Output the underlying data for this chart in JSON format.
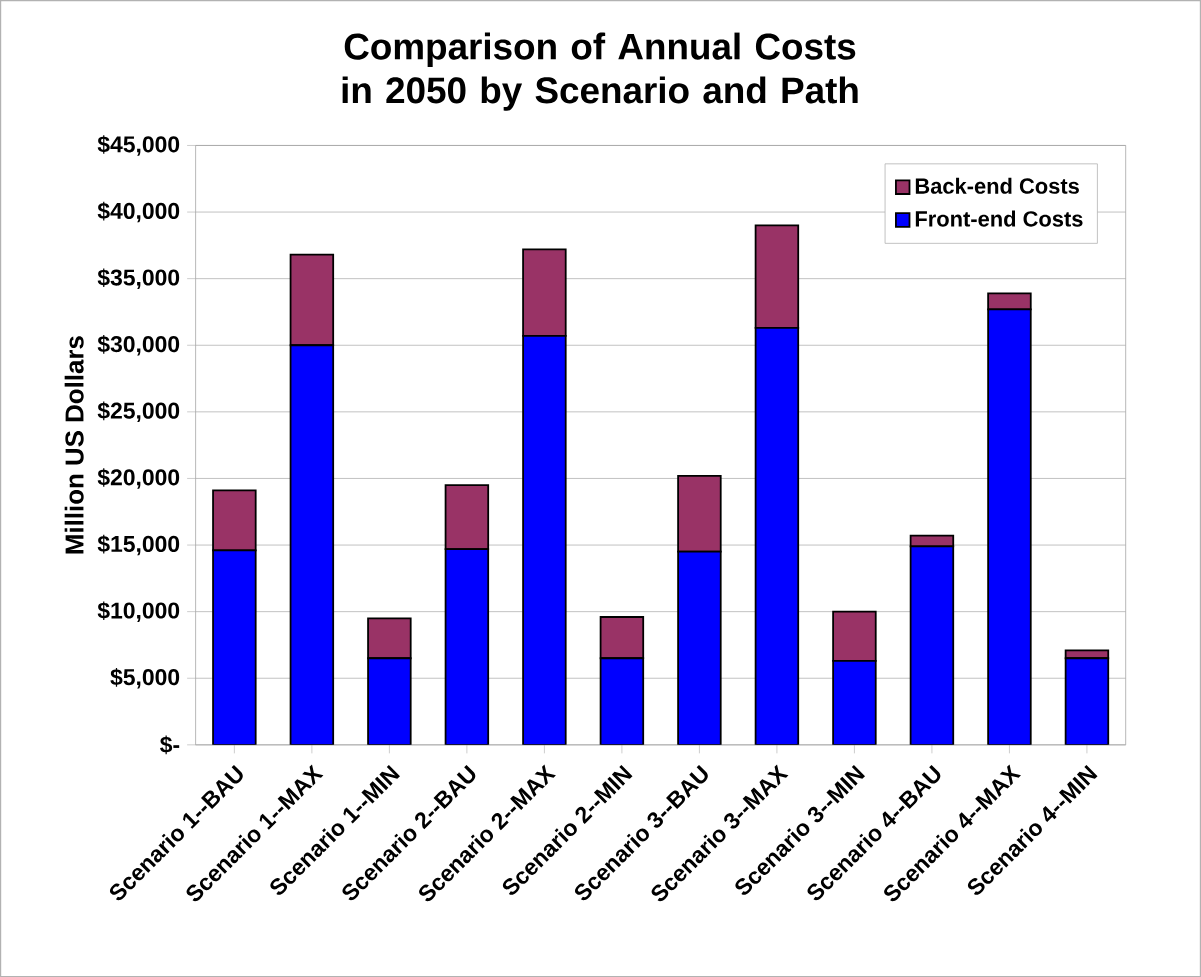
{
  "chart_data": {
    "type": "bar",
    "stacked": true,
    "title": "Comparison of Annual Costs in 2050 by Scenario and Path",
    "ylabel": "Million US Dollars",
    "categories": [
      "Scenario 1--BAU",
      "Scenario 1--MAX",
      "Scenario 1--MIN",
      "Scenario 2--BAU",
      "Scenario 2--MAX",
      "Scenario 2--MIN",
      "Scenario 3--BAU",
      "Scenario 3--MAX",
      "Scenario 3--MIN",
      "Scenario 4--BAU",
      "Scenario 4--MAX",
      "Scenario 4--MIN"
    ],
    "series": [
      {
        "name": "Front-end Costs",
        "color": "#0000ff",
        "values": [
          14600,
          30000,
          6500,
          14700,
          30700,
          6500,
          14500,
          31300,
          6300,
          14900,
          32700,
          6500
        ]
      },
      {
        "name": "Back-end Costs",
        "color": "#993366",
        "values": [
          4500,
          6800,
          3000,
          4800,
          6500,
          3100,
          5700,
          7700,
          3700,
          800,
          1200,
          600
        ]
      }
    ],
    "ylim": [
      0,
      45000
    ],
    "yticks": [
      {
        "value": 0,
        "label": "$-"
      },
      {
        "value": 5000,
        "label": "$5,000"
      },
      {
        "value": 10000,
        "label": "$10,000"
      },
      {
        "value": 15000,
        "label": "$15,000"
      },
      {
        "value": 20000,
        "label": "$20,000"
      },
      {
        "value": 25000,
        "label": "$25,000"
      },
      {
        "value": 30000,
        "label": "$30,000"
      },
      {
        "value": 35000,
        "label": "$35,000"
      },
      {
        "value": 40000,
        "label": "$40,000"
      },
      {
        "value": 45000,
        "label": "$45,000"
      }
    ],
    "grid": "y",
    "legend": "top right"
  }
}
